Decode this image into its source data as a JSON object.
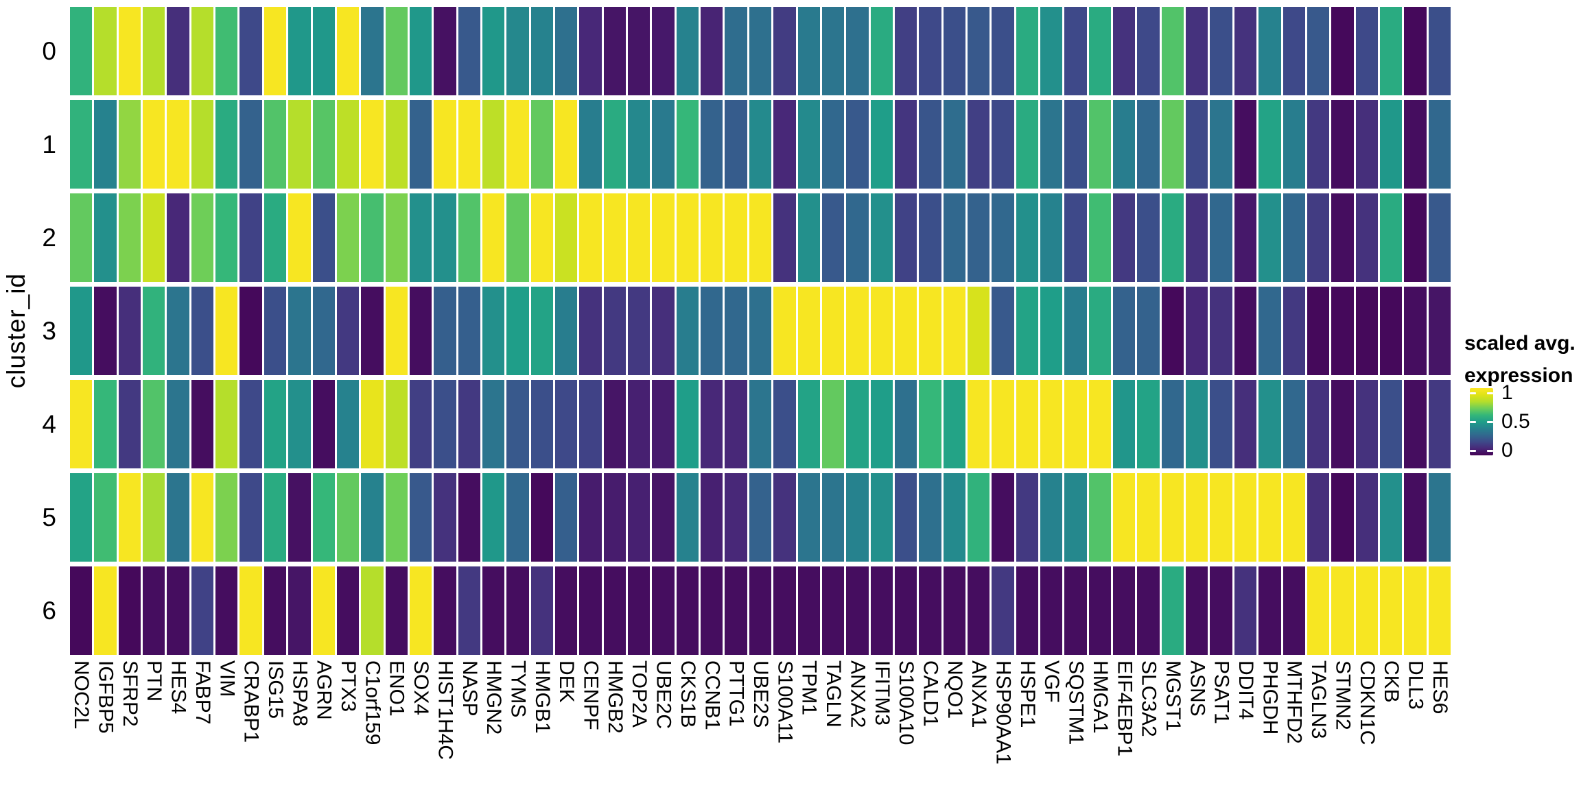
{
  "figure": {
    "y_axis_title": "cluster_id",
    "legend": {
      "title_line1": "scaled avg.",
      "title_line2": "expression",
      "tick_labels": [
        "1",
        "0.5",
        "0"
      ]
    }
  },
  "chart_data": {
    "type": "heatmap",
    "title": "",
    "xlabel": "",
    "ylabel": "cluster_id",
    "colormap": "viridis",
    "value_range": [
      0,
      1
    ],
    "legend_title": "scaled avg. expression",
    "legend_ticks": [
      1,
      0.5,
      0
    ],
    "legend_position": "right",
    "grid": "white gaps between cells",
    "rows": [
      "0",
      "1",
      "2",
      "3",
      "4",
      "5",
      "6"
    ],
    "columns": [
      "NOC2L",
      "IGFBP5",
      "SFRP2",
      "PTN",
      "HES4",
      "FABP7",
      "VIM",
      "CRABP1",
      "ISG15",
      "HSPA8",
      "AGRN",
      "PTX3",
      "C1orf159",
      "ENO1",
      "SOX4",
      "HIST1H4C",
      "NASP",
      "HMGN2",
      "TYMS",
      "HMGB1",
      "DEK",
      "CENPF",
      "HMGB2",
      "TOP2A",
      "UBE2C",
      "CKS1B",
      "CCNB1",
      "PTTG1",
      "UBE2S",
      "S100A11",
      "TPM1",
      "TAGLN",
      "ANXA2",
      "IFITM3",
      "S100A10",
      "CALD1",
      "NQO1",
      "ANXA1",
      "HSP90AA1",
      "HSPE1",
      "VGF",
      "SQSTM1",
      "HMGA1",
      "EIF4EBP1",
      "SLC3A2",
      "MGST1",
      "ASNS",
      "PSAT1",
      "DDIT4",
      "PHGDH",
      "MTHFD2",
      "TAGLN3",
      "STMN2",
      "CDKN1C",
      "CKB",
      "DLL3",
      "HES6"
    ],
    "values": [
      [
        0.58,
        0.8,
        0.98,
        0.8,
        0.12,
        0.8,
        0.62,
        0.2,
        0.98,
        0.48,
        0.48,
        0.98,
        0.35,
        0.68,
        0.48,
        0.04,
        0.25,
        0.48,
        0.42,
        0.4,
        0.33,
        0.1,
        0.05,
        0.05,
        0.06,
        0.4,
        0.09,
        0.32,
        0.33,
        0.16,
        0.37,
        0.35,
        0.33,
        0.55,
        0.17,
        0.2,
        0.22,
        0.25,
        0.22,
        0.55,
        0.45,
        0.2,
        0.55,
        0.13,
        0.2,
        0.65,
        0.13,
        0.22,
        0.13,
        0.4,
        0.2,
        0.25,
        0.02,
        0.2,
        0.55,
        0.02,
        0.22
      ],
      [
        0.58,
        0.4,
        0.75,
        0.98,
        0.98,
        0.8,
        0.55,
        0.28,
        0.65,
        0.8,
        0.66,
        0.82,
        0.98,
        0.82,
        0.28,
        0.98,
        0.98,
        0.82,
        0.98,
        0.68,
        0.98,
        0.38,
        0.55,
        0.42,
        0.37,
        0.6,
        0.28,
        0.26,
        0.43,
        0.1,
        0.43,
        0.3,
        0.25,
        0.5,
        0.14,
        0.24,
        0.32,
        0.17,
        0.2,
        0.55,
        0.35,
        0.22,
        0.65,
        0.38,
        0.3,
        0.68,
        0.2,
        0.35,
        0.03,
        0.52,
        0.38,
        0.15,
        0.03,
        0.12,
        0.48,
        0.03,
        0.3
      ],
      [
        0.68,
        0.45,
        0.72,
        0.85,
        0.1,
        0.7,
        0.6,
        0.18,
        0.55,
        0.98,
        0.22,
        0.72,
        0.63,
        0.72,
        0.45,
        0.45,
        0.65,
        0.98,
        0.68,
        0.98,
        0.85,
        0.98,
        0.98,
        0.98,
        0.98,
        0.98,
        0.98,
        0.98,
        0.98,
        0.13,
        0.45,
        0.25,
        0.3,
        0.45,
        0.18,
        0.22,
        0.3,
        0.28,
        0.3,
        0.45,
        0.4,
        0.2,
        0.62,
        0.15,
        0.22,
        0.55,
        0.13,
        0.3,
        0.06,
        0.45,
        0.3,
        0.16,
        0.03,
        0.13,
        0.55,
        0.02,
        0.25
      ],
      [
        0.48,
        0.03,
        0.12,
        0.58,
        0.35,
        0.22,
        0.98,
        0.02,
        0.22,
        0.35,
        0.3,
        0.15,
        0.03,
        0.98,
        0.03,
        0.27,
        0.27,
        0.45,
        0.5,
        0.52,
        0.38,
        0.13,
        0.15,
        0.15,
        0.12,
        0.38,
        0.3,
        0.3,
        0.33,
        0.98,
        0.98,
        0.98,
        0.98,
        0.98,
        0.98,
        0.98,
        0.98,
        0.88,
        0.25,
        0.52,
        0.5,
        0.38,
        0.55,
        0.28,
        0.28,
        0.02,
        0.1,
        0.13,
        0.03,
        0.3,
        0.15,
        0.02,
        0.02,
        0.02,
        0.02,
        0.03,
        0.05
      ],
      [
        0.98,
        0.6,
        0.15,
        0.65,
        0.35,
        0.03,
        0.8,
        0.2,
        0.52,
        0.45,
        0.03,
        0.4,
        0.93,
        0.82,
        0.17,
        0.22,
        0.15,
        0.35,
        0.25,
        0.22,
        0.2,
        0.18,
        0.05,
        0.08,
        0.07,
        0.5,
        0.1,
        0.1,
        0.35,
        0.22,
        0.52,
        0.68,
        0.52,
        0.5,
        0.33,
        0.6,
        0.52,
        0.98,
        0.98,
        0.98,
        0.98,
        0.98,
        0.98,
        0.47,
        0.52,
        0.3,
        0.45,
        0.22,
        0.12,
        0.45,
        0.3,
        0.13,
        0.03,
        0.13,
        0.22,
        0.03,
        0.15
      ],
      [
        0.52,
        0.62,
        0.98,
        0.78,
        0.35,
        0.98,
        0.72,
        0.2,
        0.55,
        0.04,
        0.6,
        0.68,
        0.4,
        0.7,
        0.25,
        0.13,
        0.03,
        0.48,
        0.3,
        0.02,
        0.27,
        0.07,
        0.07,
        0.08,
        0.05,
        0.4,
        0.08,
        0.1,
        0.28,
        0.13,
        0.35,
        0.35,
        0.4,
        0.45,
        0.22,
        0.33,
        0.43,
        0.58,
        0.03,
        0.15,
        0.4,
        0.42,
        0.65,
        0.98,
        0.98,
        0.98,
        0.98,
        0.98,
        0.98,
        0.98,
        0.98,
        0.12,
        0.02,
        0.12,
        0.45,
        0.03,
        0.35
      ],
      [
        0.02,
        0.98,
        0.02,
        0.03,
        0.03,
        0.18,
        0.03,
        0.98,
        0.03,
        0.05,
        0.98,
        0.03,
        0.8,
        0.03,
        0.98,
        0.03,
        0.15,
        0.03,
        0.03,
        0.13,
        0.03,
        0.03,
        0.03,
        0.03,
        0.03,
        0.03,
        0.03,
        0.03,
        0.03,
        0.03,
        0.03,
        0.03,
        0.03,
        0.03,
        0.03,
        0.03,
        0.03,
        0.03,
        0.15,
        0.03,
        0.03,
        0.03,
        0.03,
        0.03,
        0.03,
        0.55,
        0.03,
        0.03,
        0.13,
        0.03,
        0.03,
        0.98,
        0.98,
        0.98,
        0.98,
        0.98,
        0.98
      ]
    ]
  }
}
